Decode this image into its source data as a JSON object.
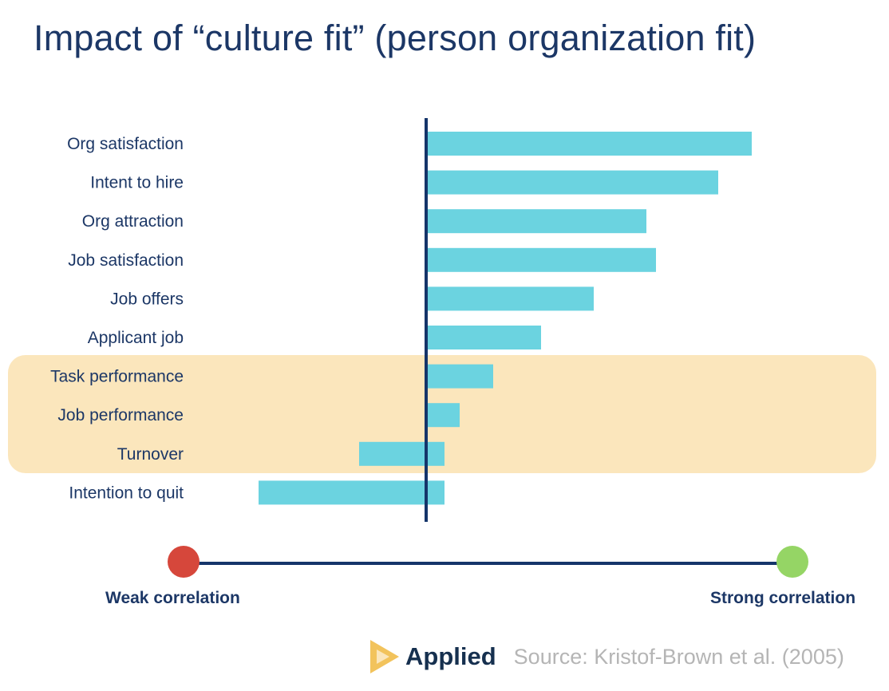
{
  "chart_data": {
    "type": "bar",
    "orientation": "horizontal",
    "title": "Impact of “culture fit” (person organization fit)",
    "categories": [
      "Org satisfaction",
      "Intent to hire",
      "Org attraction",
      "Job satisfaction",
      "Job offers",
      "Applicant job",
      "Task performance",
      "Job performance",
      "Turnover",
      "Intention to quit"
    ],
    "values": [
      0.68,
      0.61,
      0.46,
      0.48,
      0.35,
      0.24,
      0.14,
      0.07,
      -0.14,
      -0.35
    ],
    "highlighted": [
      "Task performance",
      "Job performance",
      "Turnover"
    ],
    "xlim": [
      -0.4,
      0.7
    ],
    "grid": false,
    "colors": {
      "bar": "#6bd3e0",
      "axis": "#15356a",
      "highlight": "#fbe6bc",
      "weak": "#d6473b",
      "strong": "#95d565"
    }
  },
  "scale_legend": {
    "weak_label": "Weak correlation",
    "strong_label": "Strong correlation"
  },
  "footer": {
    "brand": "Applied",
    "source": "Source: Kristof-Brown et al. (2005)"
  }
}
